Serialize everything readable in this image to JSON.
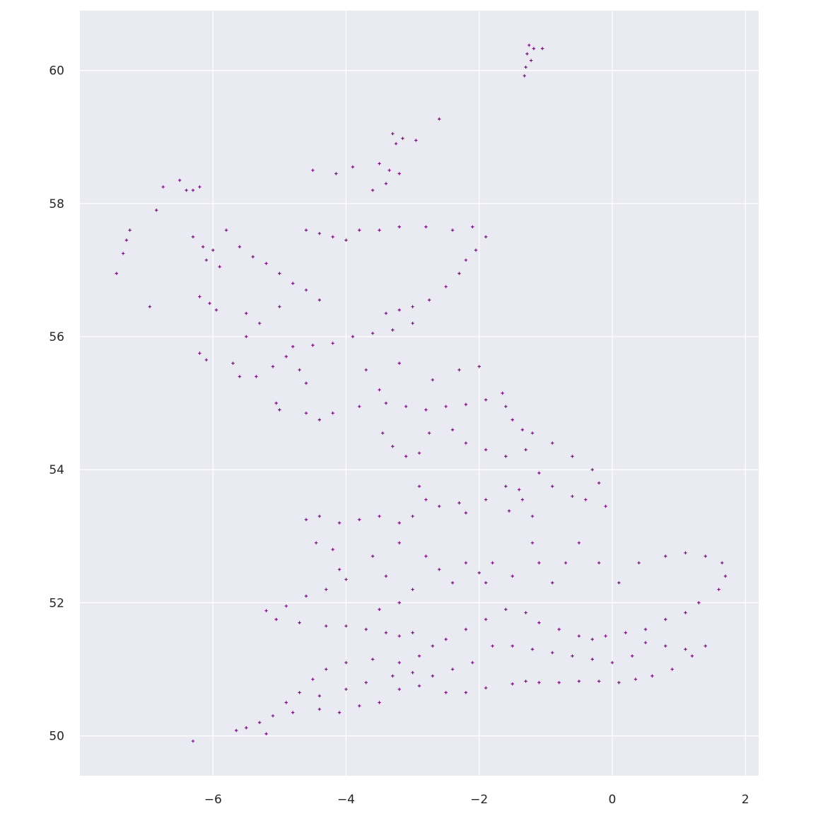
{
  "chart_data": {
    "type": "scatter",
    "title": "",
    "xlabel": "",
    "ylabel": "",
    "xlim": [
      -8.0,
      2.2
    ],
    "ylim": [
      49.4,
      60.9
    ],
    "x_ticks": [
      -6,
      -4,
      -2,
      0,
      2
    ],
    "y_ticks": [
      50,
      52,
      54,
      56,
      58,
      60
    ],
    "x_tick_labels": [
      "−6",
      "−4",
      "−2",
      "0",
      "2"
    ],
    "y_tick_labels": [
      "50",
      "52",
      "54",
      "56",
      "58",
      "60"
    ],
    "grid": true,
    "legend": "none",
    "marker": "+",
    "colors": {
      "points": "#7a0f80",
      "plot_background": "#eaeaf2",
      "grid": "#ffffff",
      "figure_background": "#ffffff"
    },
    "series": [
      {
        "points": [
          [
            -1.25,
            60.38
          ],
          [
            -1.18,
            60.33
          ],
          [
            -1.05,
            60.33
          ],
          [
            -1.28,
            60.25
          ],
          [
            -1.22,
            60.15
          ],
          [
            -1.3,
            60.05
          ],
          [
            -1.32,
            59.92
          ],
          [
            -2.6,
            59.27
          ],
          [
            -3.3,
            59.05
          ],
          [
            -3.15,
            58.98
          ],
          [
            -2.95,
            58.95
          ],
          [
            -3.25,
            58.9
          ],
          [
            -3.5,
            58.6
          ],
          [
            -3.35,
            58.5
          ],
          [
            -3.2,
            58.45
          ],
          [
            -3.4,
            58.3
          ],
          [
            -3.6,
            58.2
          ],
          [
            -3.9,
            58.55
          ],
          [
            -4.15,
            58.45
          ],
          [
            -4.5,
            58.5
          ],
          [
            -6.2,
            58.25
          ],
          [
            -6.3,
            58.2
          ],
          [
            -6.5,
            58.35
          ],
          [
            -6.4,
            58.2
          ],
          [
            -6.75,
            58.25
          ],
          [
            -6.85,
            57.9
          ],
          [
            -7.25,
            57.6
          ],
          [
            -7.3,
            57.45
          ],
          [
            -7.35,
            57.25
          ],
          [
            -7.45,
            56.95
          ],
          [
            -6.95,
            56.45
          ],
          [
            -6.3,
            57.5
          ],
          [
            -6.15,
            57.35
          ],
          [
            -6.0,
            57.3
          ],
          [
            -6.1,
            57.15
          ],
          [
            -5.9,
            57.05
          ],
          [
            -6.2,
            56.6
          ],
          [
            -6.05,
            56.5
          ],
          [
            -5.95,
            56.4
          ],
          [
            -6.2,
            55.75
          ],
          [
            -6.1,
            55.65
          ],
          [
            -5.8,
            57.6
          ],
          [
            -5.6,
            57.35
          ],
          [
            -5.4,
            57.2
          ],
          [
            -5.2,
            57.1
          ],
          [
            -5.0,
            56.95
          ],
          [
            -4.8,
            56.8
          ],
          [
            -4.6,
            56.7
          ],
          [
            -4.4,
            56.55
          ],
          [
            -4.6,
            57.6
          ],
          [
            -4.4,
            57.55
          ],
          [
            -4.2,
            57.5
          ],
          [
            -4.0,
            57.45
          ],
          [
            -3.8,
            57.6
          ],
          [
            -3.5,
            57.6
          ],
          [
            -3.2,
            57.65
          ],
          [
            -2.8,
            57.65
          ],
          [
            -2.4,
            57.6
          ],
          [
            -2.1,
            57.65
          ],
          [
            -1.9,
            57.5
          ],
          [
            -2.05,
            57.3
          ],
          [
            -2.2,
            57.15
          ],
          [
            -2.3,
            56.95
          ],
          [
            -2.5,
            56.75
          ],
          [
            -2.75,
            56.55
          ],
          [
            -3.0,
            56.45
          ],
          [
            -3.2,
            56.4
          ],
          [
            -3.4,
            56.35
          ],
          [
            -3.0,
            56.2
          ],
          [
            -3.3,
            56.1
          ],
          [
            -3.6,
            56.05
          ],
          [
            -3.9,
            56.0
          ],
          [
            -4.2,
            55.9
          ],
          [
            -4.5,
            55.87
          ],
          [
            -4.8,
            55.85
          ],
          [
            -4.9,
            55.7
          ],
          [
            -4.7,
            55.5
          ],
          [
            -4.6,
            55.3
          ],
          [
            -5.1,
            55.55
          ],
          [
            -5.35,
            55.4
          ],
          [
            -5.6,
            55.4
          ],
          [
            -5.7,
            55.6
          ],
          [
            -5.5,
            56.0
          ],
          [
            -5.3,
            56.2
          ],
          [
            -5.5,
            56.35
          ],
          [
            -5.0,
            56.45
          ],
          [
            -5.05,
            55.0
          ],
          [
            -5.0,
            54.9
          ],
          [
            -4.6,
            54.85
          ],
          [
            -4.4,
            54.75
          ],
          [
            -4.2,
            54.85
          ],
          [
            -3.8,
            54.95
          ],
          [
            -3.4,
            55.0
          ],
          [
            -3.1,
            54.95
          ],
          [
            -2.8,
            54.9
          ],
          [
            -2.5,
            54.95
          ],
          [
            -2.2,
            54.98
          ],
          [
            -1.9,
            55.05
          ],
          [
            -1.65,
            55.15
          ],
          [
            -1.6,
            54.95
          ],
          [
            -1.5,
            54.75
          ],
          [
            -1.35,
            54.6
          ],
          [
            -1.2,
            54.55
          ],
          [
            -2.7,
            55.35
          ],
          [
            -2.3,
            55.5
          ],
          [
            -2.0,
            55.55
          ],
          [
            -3.2,
            55.6
          ],
          [
            -3.7,
            55.5
          ],
          [
            -3.5,
            55.2
          ],
          [
            -3.45,
            54.55
          ],
          [
            -3.3,
            54.35
          ],
          [
            -3.1,
            54.2
          ],
          [
            -2.9,
            54.25
          ],
          [
            -2.75,
            54.55
          ],
          [
            -2.4,
            54.6
          ],
          [
            -2.2,
            54.4
          ],
          [
            -1.9,
            54.3
          ],
          [
            -1.6,
            54.2
          ],
          [
            -1.3,
            54.3
          ],
          [
            -0.9,
            54.4
          ],
          [
            -0.6,
            54.2
          ],
          [
            -0.3,
            54.0
          ],
          [
            -0.2,
            53.8
          ],
          [
            -2.9,
            53.75
          ],
          [
            -2.8,
            53.55
          ],
          [
            -2.6,
            53.45
          ],
          [
            -2.3,
            53.5
          ],
          [
            -2.2,
            53.35
          ],
          [
            -1.9,
            53.55
          ],
          [
            -1.6,
            53.75
          ],
          [
            -1.35,
            53.55
          ],
          [
            -1.2,
            53.3
          ],
          [
            -1.55,
            53.38
          ],
          [
            -1.4,
            53.7
          ],
          [
            -1.1,
            53.95
          ],
          [
            -0.9,
            53.75
          ],
          [
            -0.6,
            53.6
          ],
          [
            -0.4,
            53.55
          ],
          [
            -0.1,
            53.45
          ],
          [
            -3.0,
            53.3
          ],
          [
            -3.2,
            53.2
          ],
          [
            -3.5,
            53.3
          ],
          [
            -3.8,
            53.25
          ],
          [
            -4.1,
            53.2
          ],
          [
            -4.4,
            53.3
          ],
          [
            -4.6,
            53.25
          ],
          [
            -4.45,
            52.9
          ],
          [
            -4.2,
            52.8
          ],
          [
            -4.1,
            52.5
          ],
          [
            -4.0,
            52.35
          ],
          [
            -4.3,
            52.2
          ],
          [
            -4.6,
            52.1
          ],
          [
            -4.9,
            51.95
          ],
          [
            -5.2,
            51.88
          ],
          [
            -5.05,
            51.75
          ],
          [
            -4.7,
            51.7
          ],
          [
            -4.3,
            51.65
          ],
          [
            -4.0,
            51.65
          ],
          [
            -3.7,
            51.6
          ],
          [
            -3.4,
            51.55
          ],
          [
            -3.2,
            51.5
          ],
          [
            -3.0,
            51.55
          ],
          [
            -3.5,
            51.9
          ],
          [
            -3.2,
            52.0
          ],
          [
            -3.0,
            52.2
          ],
          [
            -3.4,
            52.4
          ],
          [
            -3.6,
            52.7
          ],
          [
            -3.2,
            52.9
          ],
          [
            -2.8,
            52.7
          ],
          [
            -2.6,
            52.5
          ],
          [
            -2.4,
            52.3
          ],
          [
            -2.2,
            52.6
          ],
          [
            -2.0,
            52.45
          ],
          [
            -1.9,
            52.3
          ],
          [
            -1.8,
            52.6
          ],
          [
            -1.5,
            52.4
          ],
          [
            -1.2,
            52.9
          ],
          [
            -1.1,
            52.6
          ],
          [
            -0.9,
            52.3
          ],
          [
            -0.7,
            52.6
          ],
          [
            -0.5,
            52.9
          ],
          [
            -0.2,
            52.6
          ],
          [
            0.1,
            52.3
          ],
          [
            0.4,
            52.6
          ],
          [
            0.8,
            52.7
          ],
          [
            1.1,
            52.75
          ],
          [
            1.4,
            52.7
          ],
          [
            1.65,
            52.6
          ],
          [
            1.7,
            52.4
          ],
          [
            1.6,
            52.2
          ],
          [
            1.3,
            52.0
          ],
          [
            1.1,
            51.85
          ],
          [
            0.8,
            51.75
          ],
          [
            0.5,
            51.6
          ],
          [
            0.2,
            51.55
          ],
          [
            -0.1,
            51.5
          ],
          [
            -0.3,
            51.45
          ],
          [
            -0.5,
            51.5
          ],
          [
            -0.8,
            51.6
          ],
          [
            -1.1,
            51.7
          ],
          [
            -1.3,
            51.85
          ],
          [
            -1.6,
            51.9
          ],
          [
            -1.9,
            51.75
          ],
          [
            -2.2,
            51.6
          ],
          [
            -2.5,
            51.45
          ],
          [
            -2.7,
            51.35
          ],
          [
            -2.9,
            51.2
          ],
          [
            -3.2,
            51.1
          ],
          [
            -3.6,
            51.15
          ],
          [
            -4.0,
            51.1
          ],
          [
            -4.3,
            51.0
          ],
          [
            -4.5,
            50.85
          ],
          [
            -4.7,
            50.65
          ],
          [
            -4.9,
            50.5
          ],
          [
            -5.1,
            50.3
          ],
          [
            -5.3,
            50.2
          ],
          [
            -5.5,
            50.12
          ],
          [
            -5.65,
            50.08
          ],
          [
            -5.2,
            50.03
          ],
          [
            -4.8,
            50.35
          ],
          [
            -4.4,
            50.4
          ],
          [
            -4.1,
            50.35
          ],
          [
            -3.8,
            50.45
          ],
          [
            -3.5,
            50.5
          ],
          [
            -3.2,
            50.7
          ],
          [
            -2.9,
            50.75
          ],
          [
            -2.5,
            50.65
          ],
          [
            -2.2,
            50.65
          ],
          [
            -1.9,
            50.72
          ],
          [
            -1.5,
            50.78
          ],
          [
            -1.3,
            50.82
          ],
          [
            -1.1,
            50.8
          ],
          [
            -0.8,
            50.8
          ],
          [
            -0.5,
            50.82
          ],
          [
            -0.2,
            50.82
          ],
          [
            0.1,
            50.8
          ],
          [
            0.35,
            50.85
          ],
          [
            0.6,
            50.9
          ],
          [
            0.9,
            51.0
          ],
          [
            1.2,
            51.2
          ],
          [
            1.4,
            51.35
          ],
          [
            1.1,
            51.3
          ],
          [
            0.8,
            51.35
          ],
          [
            0.5,
            51.4
          ],
          [
            0.3,
            51.2
          ],
          [
            0.0,
            51.1
          ],
          [
            -0.3,
            51.15
          ],
          [
            -0.6,
            51.2
          ],
          [
            -0.9,
            51.25
          ],
          [
            -1.2,
            51.3
          ],
          [
            -1.5,
            51.35
          ],
          [
            -1.8,
            51.35
          ],
          [
            -2.1,
            51.1
          ],
          [
            -2.4,
            51.0
          ],
          [
            -2.7,
            50.9
          ],
          [
            -3.0,
            50.95
          ],
          [
            -3.3,
            50.9
          ],
          [
            -3.7,
            50.8
          ],
          [
            -4.0,
            50.7
          ],
          [
            -4.4,
            50.6
          ],
          [
            -6.3,
            49.92
          ]
        ]
      }
    ]
  }
}
